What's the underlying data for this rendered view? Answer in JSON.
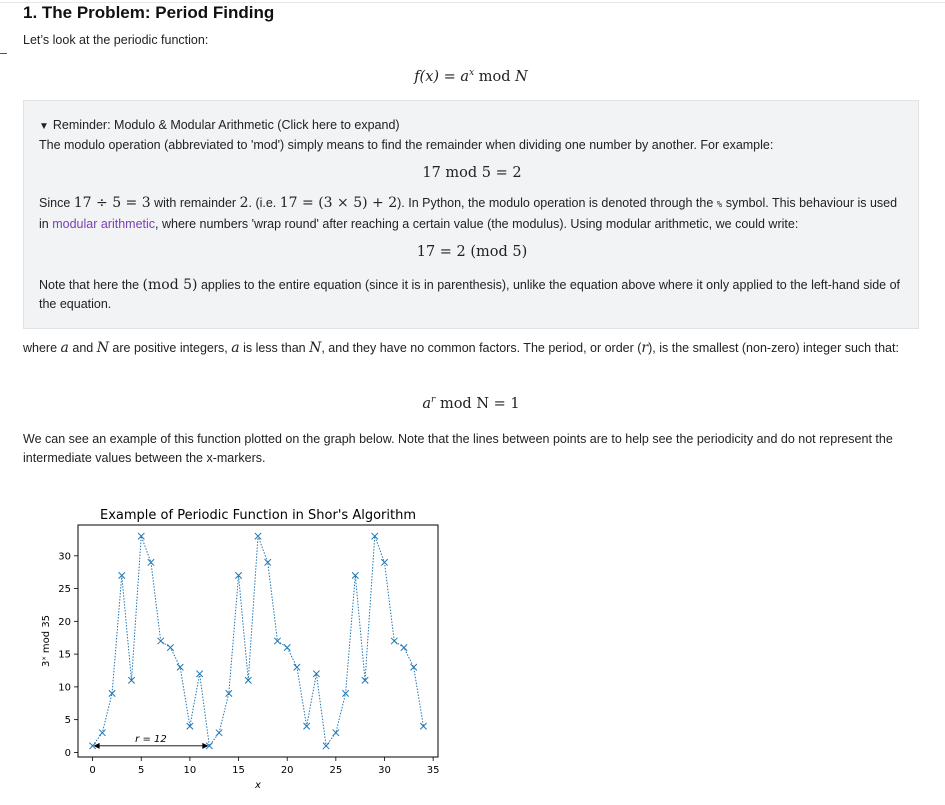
{
  "heading": "1. The Problem: Period Finding",
  "intro": "Let’s look at the periodic function:",
  "eq_main": {
    "lhs": "f(x) = a",
    "sup": "x",
    "mid": " mod ",
    "rhs": "N"
  },
  "reminder": {
    "summary": "Reminder: Modulo & Modular Arithmetic (Click here to expand)",
    "p1": "The modulo operation (abbreviated to 'mod') simply means to find the remainder when dividing one number by another. For example:",
    "eq1": "17 mod 5 = 2",
    "p2_a": "Since ",
    "p2_m1": "17 ÷ 5 = 3",
    "p2_b": " with remainder ",
    "p2_m2": "2",
    "p2_c": ". (i.e. ",
    "p2_m3": "17 = (3 × 5) + 2",
    "p2_d": "). In Python, the modulo operation is denoted through the ",
    "p2_code": "%",
    "p2_e": " symbol. This behaviour is used in ",
    "p2_link": "modular arithmetic",
    "p2_f": ", where numbers 'wrap round' after reaching a certain value (the modulus). Using modular arithmetic, we could write:",
    "eq2": "17 = 2   (mod  5)",
    "p3_a": "Note that here the ",
    "p3_m": "(mod  5)",
    "p3_b": " applies to the entire equation (since it is in parenthesis), unlike the equation above where it only applied to the left-hand side of the equation."
  },
  "para_where": {
    "a1": "where ",
    "m_a": "a",
    "a2": " and ",
    "m_N": "N",
    "a3": " are positive integers, ",
    "m_a2": "a",
    "a4": " is less than ",
    "m_N2": "N",
    "a5": ", and they have no common factors. The period, or order (",
    "m_r": "r",
    "a6": "), is the smallest (non-zero) integer such that:"
  },
  "eq_order": {
    "a": "a",
    "sup": "r",
    "rest": " mod N = 1"
  },
  "para_graph": "We can see an example of this function plotted on the graph below. Note that the lines between points are to help see the periodicity and do not represent the intermediate values between the x-markers.",
  "chart_data": {
    "type": "line",
    "title": "Example of Periodic Function in Shor's Algorithm",
    "xlabel": "x",
    "ylabel": "3ˣ mod 35",
    "x": [
      0,
      1,
      2,
      3,
      4,
      5,
      6,
      7,
      8,
      9,
      10,
      11,
      12,
      13,
      14,
      15,
      16,
      17,
      18,
      19,
      20,
      21,
      22,
      23,
      24,
      25,
      26,
      27,
      28,
      29,
      30,
      31,
      32,
      33,
      34
    ],
    "series": [
      {
        "values": [
          1,
          3,
          9,
          27,
          11,
          33,
          29,
          17,
          16,
          13,
          4,
          12,
          1,
          3,
          9,
          27,
          11,
          33,
          29,
          17,
          16,
          13,
          4,
          12,
          1,
          3,
          9,
          27,
          11,
          33,
          29,
          17,
          16,
          13,
          4
        ]
      }
    ],
    "xlim": [
      -1.5,
      35.5
    ],
    "ylim": [
      -0.7,
      34.7
    ],
    "xticks": [
      0,
      5,
      10,
      15,
      20,
      25,
      30,
      35
    ],
    "yticks": [
      0,
      5,
      10,
      15,
      20,
      25,
      30
    ],
    "annotation": {
      "text": "r = 12",
      "from": 0,
      "to": 12,
      "y": 1
    },
    "color": "#1f77b4",
    "marker": "x",
    "linestyle": "dotted",
    "grid": false
  }
}
